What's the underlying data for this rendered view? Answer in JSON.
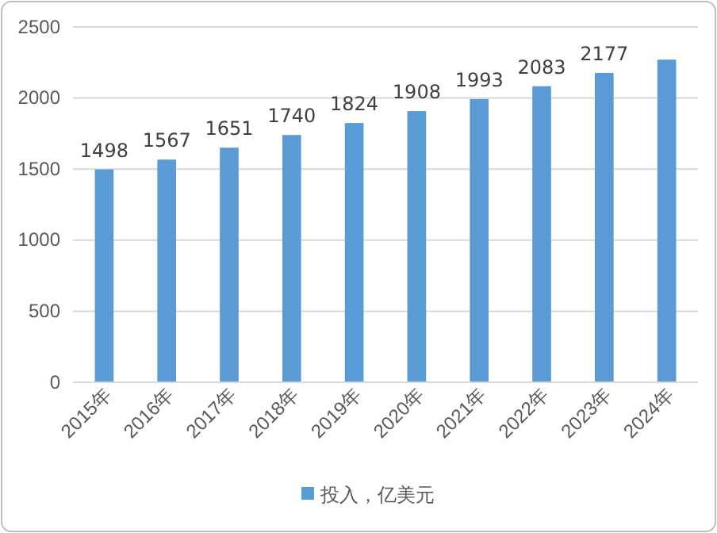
{
  "chart_data": {
    "type": "bar",
    "categories": [
      "2015年",
      "2016年",
      "2017年",
      "2018年",
      "2019年",
      "2020年",
      "2021年",
      "2022年",
      "2023年",
      "2024年"
    ],
    "series": [
      {
        "name": "投入，亿美元",
        "color": "#5b9bd5",
        "values": [
          1498,
          1567,
          1651,
          1740,
          1824,
          1908,
          1993,
          2083,
          2177,
          2270
        ],
        "value_labels": [
          "1498",
          "1567",
          "1651",
          "1740",
          "1824",
          "1908",
          "1993",
          "2083",
          "2177",
          null
        ]
      }
    ],
    "ylim": [
      0,
      2500
    ],
    "yticks": [
      0,
      500,
      1000,
      1500,
      2000,
      2500
    ],
    "grid": "y",
    "legend": "bottom"
  }
}
